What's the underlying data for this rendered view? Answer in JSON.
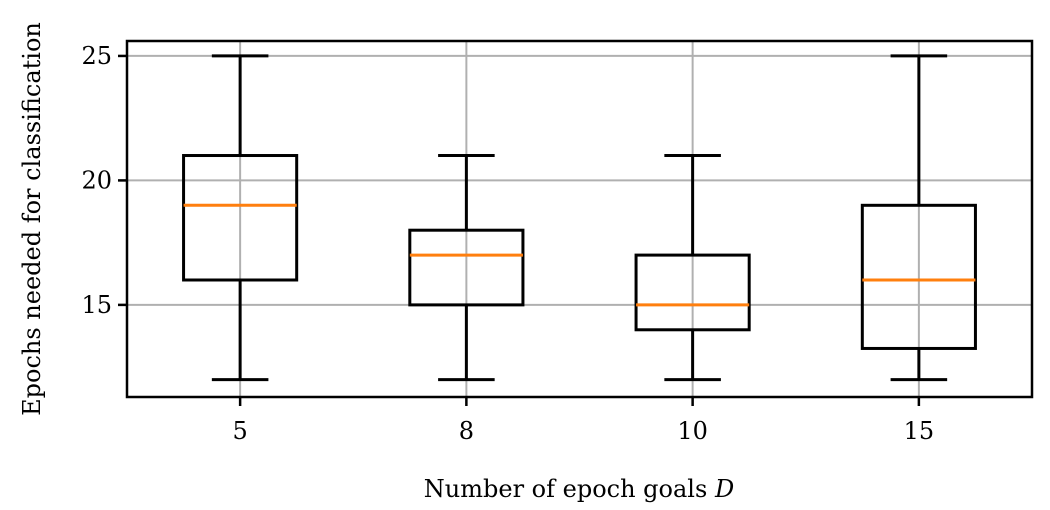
{
  "chart_data": {
    "type": "box",
    "categories": [
      "5",
      "8",
      "10",
      "15"
    ],
    "boxes": [
      {
        "category": "5",
        "whisker_low": 12,
        "q1": 16,
        "median": 19,
        "q3": 21,
        "whisker_high": 25
      },
      {
        "category": "8",
        "whisker_low": 12,
        "q1": 15,
        "median": 17,
        "q3": 18,
        "whisker_high": 21
      },
      {
        "category": "10",
        "whisker_low": 12,
        "q1": 14,
        "median": 15,
        "q3": 17,
        "whisker_high": 21
      },
      {
        "category": "15",
        "whisker_low": 12,
        "q1": 13.25,
        "median": 16,
        "q3": 19,
        "whisker_high": 25
      }
    ],
    "title": "",
    "xlabel": "Number of epoch goals",
    "xlabel_symbol": "D",
    "ylabel": "Epochs needed for classification",
    "ylim": [
      11.3,
      25.6
    ],
    "yticks": [
      15,
      20,
      25
    ],
    "grid": true,
    "colors": {
      "box": "#000000",
      "median": "#ff7f0e",
      "grid": "#b0b0b0"
    }
  }
}
